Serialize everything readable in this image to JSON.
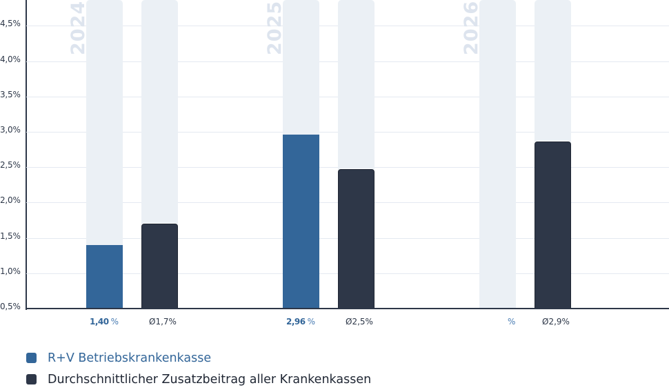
{
  "chart_data": {
    "type": "bar",
    "title": "",
    "xlabel": "",
    "ylabel": "",
    "ylim": [
      0.5,
      5.0
    ],
    "grid": true,
    "legend_position": "bottom-left",
    "categories": [
      "2024",
      "2025",
      "2026"
    ],
    "series": [
      {
        "name": "R+V Betriebskrankenkasse",
        "color": "#336699",
        "values": [
          1.4,
          2.96,
          null
        ],
        "labels": [
          "1,40",
          "2,96",
          ""
        ],
        "unit": "%"
      },
      {
        "name": "Durchschnittlicher Zusatzbeitrag aller Krankenkassen",
        "color": "#2e3748",
        "values": [
          1.7,
          2.5,
          2.9
        ],
        "labels": [
          "Ø1,7%",
          "Ø2,5%",
          "Ø2,9%"
        ]
      }
    ],
    "y_ticks": [
      "0,5%",
      "1,0%",
      "1,5%",
      "2,0%",
      "2,5%",
      "3,0%",
      "3,5%",
      "4,0%",
      "4,5%"
    ],
    "y_tick_values": [
      0.5,
      1.0,
      1.5,
      2.0,
      2.5,
      3.0,
      3.5,
      4.0,
      4.5
    ]
  },
  "legend": {
    "items": [
      {
        "label": "R+V Betriebskrankenkasse",
        "color": "#336699"
      },
      {
        "label": "Durchschnittlicher Zusatzbeitrag aller Krankenkassen",
        "color": "#2e3748"
      }
    ]
  },
  "colors": {
    "rv": "#336699",
    "avg": "#2e3748",
    "track": "#ebf0f5",
    "grid": "#e4e9f1",
    "axis": "#2d3748",
    "year_watermark": "#dde4ee"
  }
}
